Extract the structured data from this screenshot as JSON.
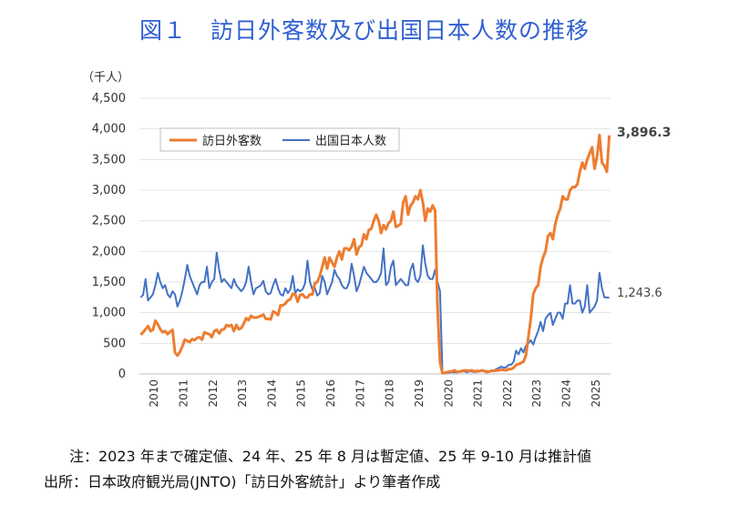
{
  "title": "図１　訪日外客数及び出国日本人数の推移",
  "notes": {
    "note": "注：2023 年まで確定値、24 年、25 年 8 月は暫定値、25 年 9-10 月は推計値",
    "source": "出所：日本政府観光局(JNTO)「訪日外客統計」より筆者作成"
  },
  "colors": {
    "visitors": "#ed7d31",
    "outbound": "#4472c4",
    "title": "#2f5fd0"
  },
  "chart_data": {
    "type": "line",
    "unit_label": "（千人）",
    "ylim": [
      0,
      4500
    ],
    "yticks": [
      "0",
      "500",
      "1,000",
      "1,500",
      "2,000",
      "2,500",
      "3,000",
      "3,500",
      "4,000",
      "4,500"
    ],
    "xticks": [
      "2010",
      "2011",
      "2012",
      "2013",
      "2014",
      "2015",
      "2016",
      "2017",
      "2018",
      "2019",
      "2020",
      "2021",
      "2022",
      "2023",
      "2024",
      "2025"
    ],
    "xstart": "2010-01",
    "legend_position": "top-left",
    "series": [
      {
        "name": "訪日外客数",
        "end_label": "3,896.3",
        "values": [
          640,
          680,
          730,
          780,
          700,
          720,
          870,
          810,
          730,
          680,
          700,
          650,
          690,
          720,
          350,
          300,
          360,
          450,
          560,
          540,
          520,
          570,
          550,
          590,
          600,
          560,
          680,
          660,
          650,
          600,
          700,
          720,
          660,
          720,
          730,
          800,
          780,
          800,
          700,
          800,
          730,
          750,
          820,
          910,
          880,
          950,
          920,
          920,
          930,
          950,
          970,
          900,
          900,
          890,
          1020,
          1000,
          960,
          1120,
          1120,
          1150,
          1200,
          1220,
          1310,
          1300,
          1180,
          1290,
          1300,
          1250,
          1250,
          1300,
          1300,
          1480,
          1500,
          1600,
          1750,
          1900,
          1720,
          1900,
          1820,
          1750,
          1900,
          2000,
          1870,
          2050,
          2050,
          2020,
          2080,
          2200,
          1950,
          2070,
          2100,
          2280,
          2200,
          2350,
          2370,
          2500,
          2600,
          2500,
          2300,
          2430,
          2360,
          2460,
          2500,
          2650,
          2400,
          2420,
          2450,
          2800,
          2900,
          2600,
          2750,
          2800,
          2900,
          2850,
          3000,
          2800,
          2500,
          2700,
          2650,
          2750,
          2670,
          1080,
          200,
          10,
          20,
          30,
          40,
          45,
          60,
          30,
          40,
          50,
          60,
          55,
          50,
          60,
          40,
          50,
          45,
          60,
          50,
          30,
          40,
          50,
          50,
          55,
          60,
          70,
          65,
          60,
          80,
          80,
          100,
          150,
          160,
          180,
          200,
          300,
          600,
          900,
          1300,
          1400,
          1450,
          1750,
          1900,
          2000,
          2250,
          2300,
          2200,
          2450,
          2600,
          2700,
          2900,
          2850,
          2850,
          3000,
          3050,
          3050,
          3100,
          3300,
          3450,
          3350,
          3500,
          3600,
          3700,
          3350,
          3550,
          3900,
          3450,
          3400,
          3300,
          3896
        ]
      },
      {
        "name": "出国日本人数",
        "end_label": "1,243.6",
        "values": [
          1250,
          1290,
          1550,
          1200,
          1250,
          1300,
          1450,
          1650,
          1500,
          1400,
          1450,
          1300,
          1250,
          1350,
          1300,
          1100,
          1200,
          1350,
          1550,
          1780,
          1600,
          1500,
          1400,
          1300,
          1450,
          1500,
          1500,
          1750,
          1400,
          1500,
          1550,
          1980,
          1700,
          1500,
          1550,
          1500,
          1450,
          1400,
          1550,
          1450,
          1400,
          1350,
          1400,
          1500,
          1750,
          1500,
          1300,
          1400,
          1420,
          1450,
          1520,
          1350,
          1300,
          1320,
          1450,
          1550,
          1400,
          1300,
          1280,
          1400,
          1320,
          1380,
          1600,
          1320,
          1380,
          1350,
          1380,
          1480,
          1850,
          1500,
          1380,
          1400,
          1280,
          1320,
          1600,
          1500,
          1300,
          1400,
          1500,
          1700,
          1600,
          1550,
          1450,
          1400,
          1400,
          1500,
          1800,
          1600,
          1350,
          1450,
          1600,
          1750,
          1650,
          1600,
          1550,
          1500,
          1500,
          1550,
          1650,
          2050,
          1450,
          1500,
          1750,
          1850,
          1450,
          1500,
          1550,
          1500,
          1450,
          1450,
          1700,
          1800,
          1550,
          1500,
          1600,
          2100,
          1800,
          1600,
          1550,
          1550,
          1700,
          1500,
          1350,
          10,
          10,
          20,
          25,
          30,
          25,
          30,
          30,
          40,
          40,
          30,
          40,
          40,
          30,
          35,
          40,
          50,
          40,
          50,
          40,
          60,
          60,
          80,
          100,
          120,
          100,
          110,
          150,
          150,
          200,
          380,
          320,
          420,
          350,
          460,
          500,
          550,
          480,
          600,
          700,
          850,
          700,
          900,
          960,
          1000,
          800,
          900,
          1000,
          1000,
          900,
          1150,
          1150,
          1450,
          1150,
          1150,
          1200,
          1200,
          1000,
          1100,
          1450,
          1000,
          1050,
          1100,
          1200,
          1650,
          1400,
          1250,
          1250,
          1244
        ]
      }
    ]
  }
}
